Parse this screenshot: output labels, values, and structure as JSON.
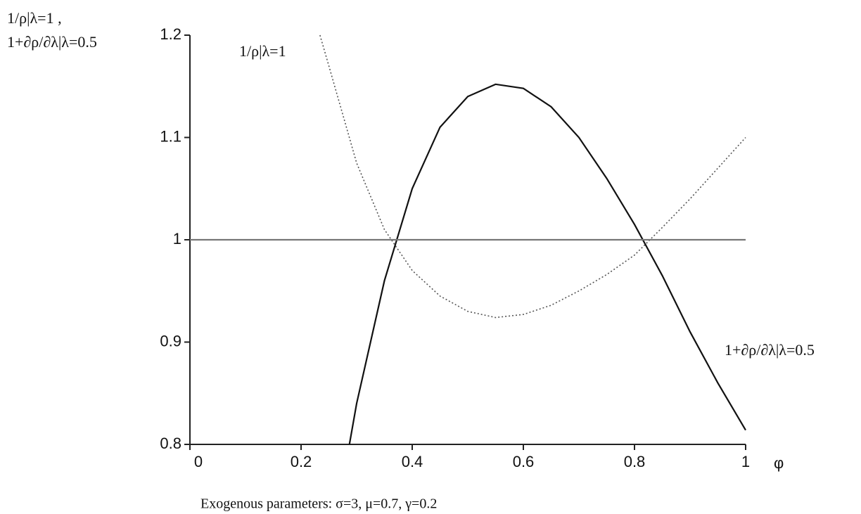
{
  "chart_data": {
    "type": "line",
    "y_label_lines": [
      "1/ρ|λ=1 ,",
      "1+∂ρ/∂λ|λ=0.5"
    ],
    "x_label": "φ",
    "caption": "Exogenous parameters: σ=3, μ=0.7, γ=0.2",
    "annotations": [
      "1/ρ|λ=1",
      "1+∂ρ/∂λ|λ=0.5"
    ],
    "xlim": [
      0,
      1
    ],
    "ylim": [
      0.8,
      1.2
    ],
    "xticks": [
      0,
      0.2,
      0.4,
      0.6,
      0.8,
      1
    ],
    "yticks": [
      0.8,
      0.9,
      1,
      1.1,
      1.2
    ],
    "series": [
      {
        "name": "1/ρ|λ=1",
        "color": "#555555",
        "style": "dotted",
        "x": [
          0.234,
          0.25,
          0.3,
          0.35,
          0.4,
          0.45,
          0.5,
          0.55,
          0.6,
          0.65,
          0.7,
          0.75,
          0.8,
          0.85,
          0.9,
          0.95,
          1.0
        ],
        "values": [
          1.2,
          1.17,
          1.075,
          1.01,
          0.97,
          0.945,
          0.93,
          0.924,
          0.927,
          0.936,
          0.95,
          0.966,
          0.985,
          1.012,
          1.04,
          1.07,
          1.1
        ]
      },
      {
        "name": "1+∂ρ/∂λ|λ=0.5",
        "color": "#111111",
        "style": "solid",
        "x": [
          0.287,
          0.3,
          0.35,
          0.4,
          0.45,
          0.5,
          0.55,
          0.6,
          0.65,
          0.7,
          0.75,
          0.8,
          0.85,
          0.9,
          0.95,
          1.0
        ],
        "values": [
          0.8,
          0.84,
          0.96,
          1.05,
          1.11,
          1.14,
          1.152,
          1.148,
          1.13,
          1.1,
          1.06,
          1.015,
          0.965,
          0.91,
          0.86,
          0.814
        ]
      },
      {
        "color": "#777777",
        "style": "solid",
        "x": [
          0,
          1
        ],
        "values": [
          1,
          1
        ]
      }
    ]
  }
}
